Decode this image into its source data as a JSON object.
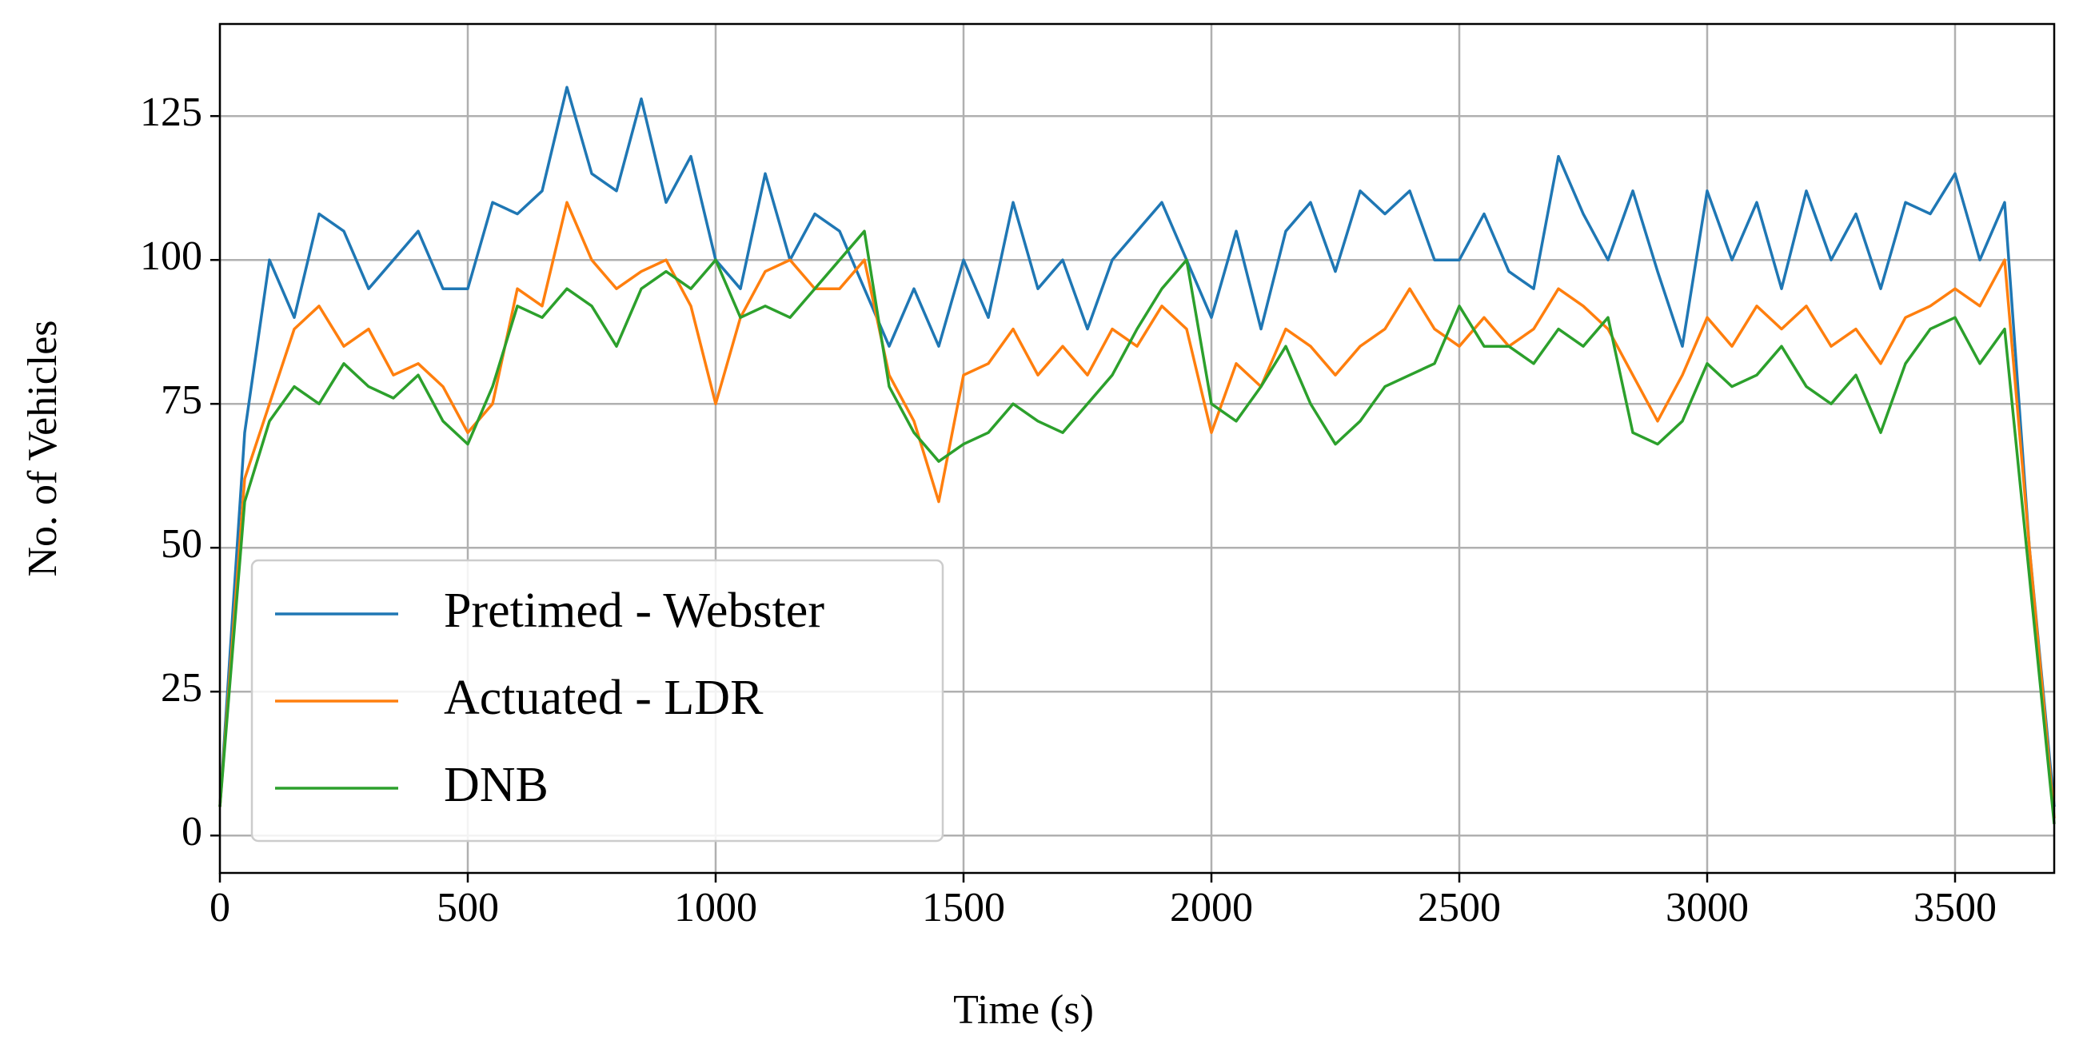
{
  "chart_data": {
    "type": "line",
    "xlabel": "Time (s)",
    "ylabel": "No. of Vehicles",
    "x": [
      0,
      50,
      100,
      150,
      200,
      250,
      300,
      350,
      400,
      450,
      500,
      550,
      600,
      650,
      700,
      750,
      800,
      850,
      900,
      950,
      1000,
      1050,
      1100,
      1150,
      1200,
      1250,
      1300,
      1350,
      1400,
      1450,
      1500,
      1550,
      1600,
      1650,
      1700,
      1750,
      1800,
      1850,
      1900,
      1950,
      2000,
      2050,
      2100,
      2150,
      2200,
      2250,
      2300,
      2350,
      2400,
      2450,
      2500,
      2550,
      2600,
      2650,
      2700,
      2750,
      2800,
      2850,
      2900,
      2950,
      3000,
      3050,
      3100,
      3150,
      3200,
      3250,
      3300,
      3350,
      3400,
      3450,
      3500,
      3550,
      3600,
      3650,
      3700
    ],
    "series": [
      {
        "name": "Pretimed - Webster",
        "color": "#1f77b4",
        "values": [
          5,
          70,
          100,
          90,
          108,
          105,
          95,
          100,
          105,
          95,
          95,
          110,
          108,
          112,
          130,
          115,
          112,
          128,
          110,
          118,
          100,
          95,
          115,
          100,
          108,
          105,
          95,
          85,
          95,
          85,
          100,
          90,
          110,
          95,
          100,
          88,
          100,
          105,
          110,
          100,
          90,
          105,
          88,
          105,
          110,
          98,
          112,
          108,
          112,
          100,
          100,
          108,
          98,
          95,
          118,
          108,
          100,
          112,
          98,
          85,
          112,
          100,
          110,
          95,
          112,
          100,
          108,
          95,
          110,
          108,
          115,
          100,
          110,
          50,
          5
        ]
      },
      {
        "name": "Actuated - LDR",
        "color": "#ff7f0e",
        "values": [
          5,
          62,
          75,
          88,
          92,
          85,
          88,
          80,
          82,
          78,
          70,
          75,
          95,
          92,
          110,
          100,
          95,
          98,
          100,
          92,
          75,
          90,
          98,
          100,
          95,
          95,
          100,
          80,
          72,
          58,
          80,
          82,
          88,
          80,
          85,
          80,
          88,
          85,
          92,
          88,
          70,
          82,
          78,
          88,
          85,
          80,
          85,
          88,
          95,
          88,
          85,
          90,
          85,
          88,
          95,
          92,
          88,
          80,
          72,
          80,
          90,
          85,
          92,
          88,
          92,
          85,
          88,
          82,
          90,
          92,
          95,
          92,
          100,
          50,
          3
        ]
      },
      {
        "name": "DNB",
        "color": "#2ca02c",
        "values": [
          5,
          58,
          72,
          78,
          75,
          82,
          78,
          76,
          80,
          72,
          68,
          78,
          92,
          90,
          95,
          92,
          85,
          95,
          98,
          95,
          100,
          90,
          92,
          90,
          95,
          100,
          105,
          78,
          70,
          65,
          68,
          70,
          75,
          72,
          70,
          75,
          80,
          88,
          95,
          100,
          75,
          72,
          78,
          85,
          75,
          68,
          72,
          78,
          80,
          82,
          92,
          85,
          85,
          82,
          88,
          85,
          90,
          70,
          68,
          72,
          82,
          78,
          80,
          85,
          78,
          75,
          80,
          70,
          82,
          88,
          90,
          82,
          88,
          45,
          2
        ]
      }
    ],
    "xlim": [
      0,
      3700
    ],
    "ylim": [
      -6.5,
      141
    ],
    "xticks": [
      0,
      500,
      1000,
      1500,
      2000,
      2500,
      3000,
      3500
    ],
    "yticks": [
      0,
      25,
      50,
      75,
      100,
      125
    ],
    "grid": true,
    "legend": "lower left"
  }
}
